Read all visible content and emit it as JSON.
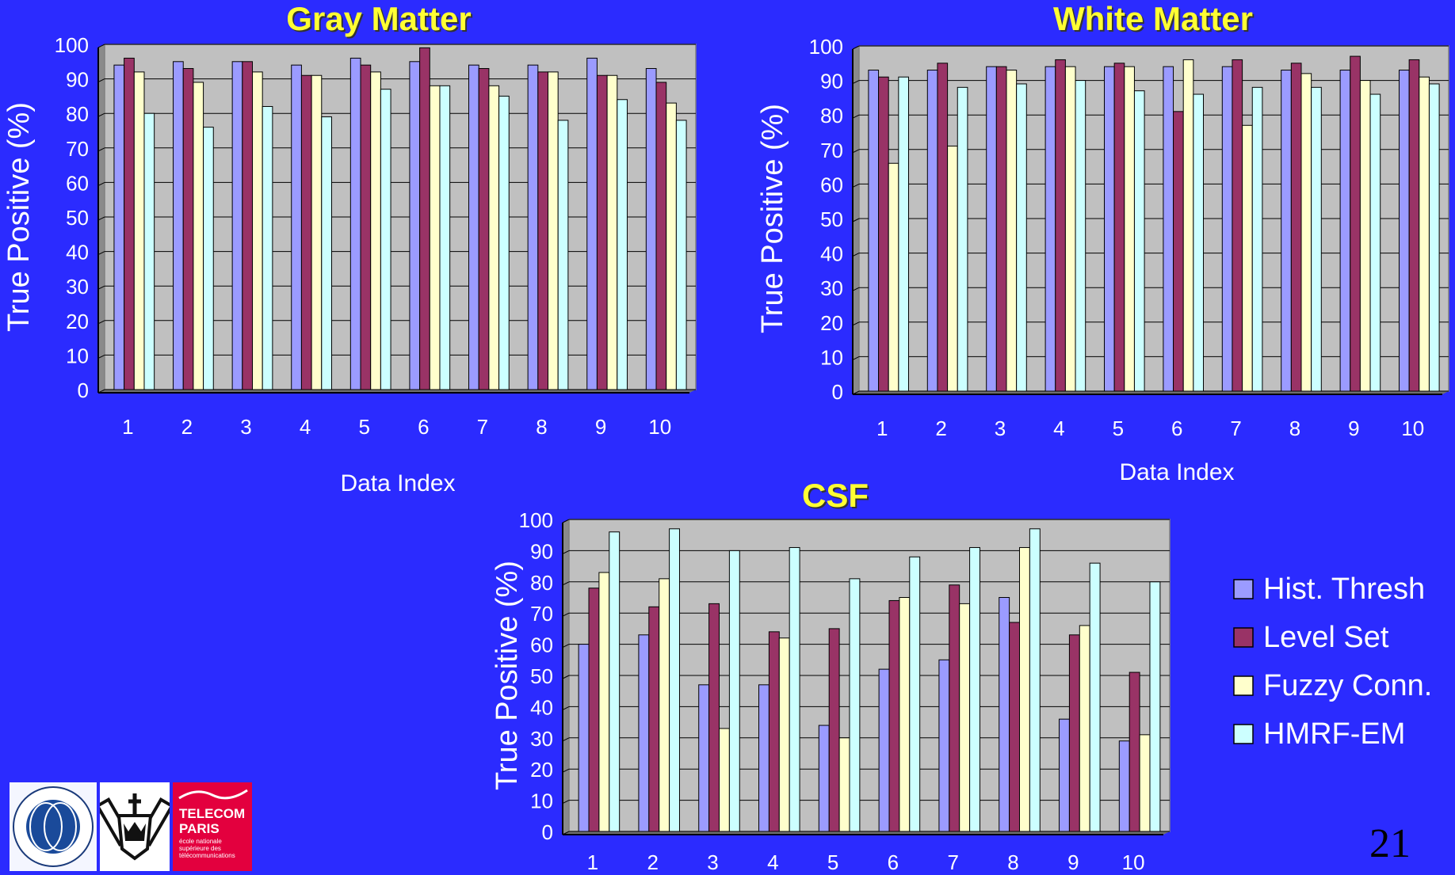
{
  "slide": {
    "number": "21"
  },
  "legend": [
    {
      "label": "Hist. Thresh",
      "color": "#9b9bff"
    },
    {
      "label": "Level Set",
      "color": "#993366"
    },
    {
      "label": "Fuzzy Conn.",
      "color": "#ffffcc"
    },
    {
      "label": "HMRF-EM",
      "color": "#ccffff"
    }
  ],
  "logos": {
    "telecom_title_1": "TELECOM",
    "telecom_title_2": "PARIS",
    "telecom_sub_1": "école nationale",
    "telecom_sub_2": "supérieure des",
    "telecom_sub_3": "télécommunications",
    "cpmc_text": "COLUMBIA-PRESBYTERIAN MEDICAL CENTER"
  },
  "chart_data": [
    {
      "type": "bar",
      "title": "Gray Matter",
      "xlabel": "Data Index",
      "ylabel": "True Positive (%)",
      "ylim": [
        0,
        100
      ],
      "yticks": [
        0,
        10,
        20,
        30,
        40,
        50,
        60,
        70,
        80,
        90,
        100
      ],
      "categories": [
        "1",
        "2",
        "3",
        "4",
        "5",
        "6",
        "7",
        "8",
        "9",
        "10"
      ],
      "grid": true,
      "series": [
        {
          "name": "Hist. Thresh",
          "values": [
            94,
            95,
            95,
            94,
            96,
            95,
            94,
            94,
            96,
            93
          ]
        },
        {
          "name": "Level Set",
          "values": [
            96,
            93,
            95,
            91,
            94,
            99,
            93,
            92,
            91,
            89
          ]
        },
        {
          "name": "Fuzzy Conn.",
          "values": [
            92,
            89,
            92,
            91,
            92,
            88,
            88,
            92,
            91,
            83
          ]
        },
        {
          "name": "HMRF-EM",
          "values": [
            80,
            76,
            82,
            79,
            87,
            88,
            85,
            78,
            84,
            78
          ]
        }
      ]
    },
    {
      "type": "bar",
      "title": "White Matter",
      "xlabel": "Data Index",
      "ylabel": "True Positive (%)",
      "ylim": [
        0,
        100
      ],
      "yticks": [
        0,
        10,
        20,
        30,
        40,
        50,
        60,
        70,
        80,
        90,
        100
      ],
      "categories": [
        "1",
        "2",
        "3",
        "4",
        "5",
        "6",
        "7",
        "8",
        "9",
        "10"
      ],
      "grid": true,
      "series": [
        {
          "name": "Hist. Thresh",
          "values": [
            93,
            93,
            94,
            94,
            94,
            94,
            94,
            93,
            93,
            93
          ]
        },
        {
          "name": "Level Set",
          "values": [
            91,
            95,
            94,
            96,
            95,
            81,
            96,
            95,
            97,
            96
          ]
        },
        {
          "name": "Fuzzy Conn.",
          "values": [
            66,
            71,
            93,
            94,
            94,
            96,
            77,
            92,
            90,
            91
          ]
        },
        {
          "name": "HMRF-EM",
          "values": [
            91,
            88,
            89,
            90,
            87,
            86,
            88,
            88,
            86,
            89
          ]
        }
      ]
    },
    {
      "type": "bar",
      "title": "CSF",
      "xlabel": "",
      "ylabel": "True Positive (%)",
      "ylim": [
        0,
        100
      ],
      "yticks": [
        0,
        10,
        20,
        30,
        40,
        50,
        60,
        70,
        80,
        90,
        100
      ],
      "categories": [
        "1",
        "2",
        "3",
        "4",
        "5",
        "6",
        "7",
        "8",
        "9",
        "10"
      ],
      "grid": true,
      "series": [
        {
          "name": "Hist. Thresh",
          "values": [
            60,
            63,
            47,
            47,
            34,
            52,
            55,
            75,
            36,
            29
          ]
        },
        {
          "name": "Level Set",
          "values": [
            78,
            72,
            73,
            64,
            65,
            74,
            79,
            67,
            63,
            51
          ]
        },
        {
          "name": "Fuzzy Conn.",
          "values": [
            83,
            81,
            33,
            62,
            30,
            75,
            73,
            91,
            66,
            31
          ]
        },
        {
          "name": "HMRF-EM",
          "values": [
            96,
            97,
            90,
            91,
            81,
            88,
            91,
            97,
            86,
            80
          ]
        }
      ]
    }
  ]
}
